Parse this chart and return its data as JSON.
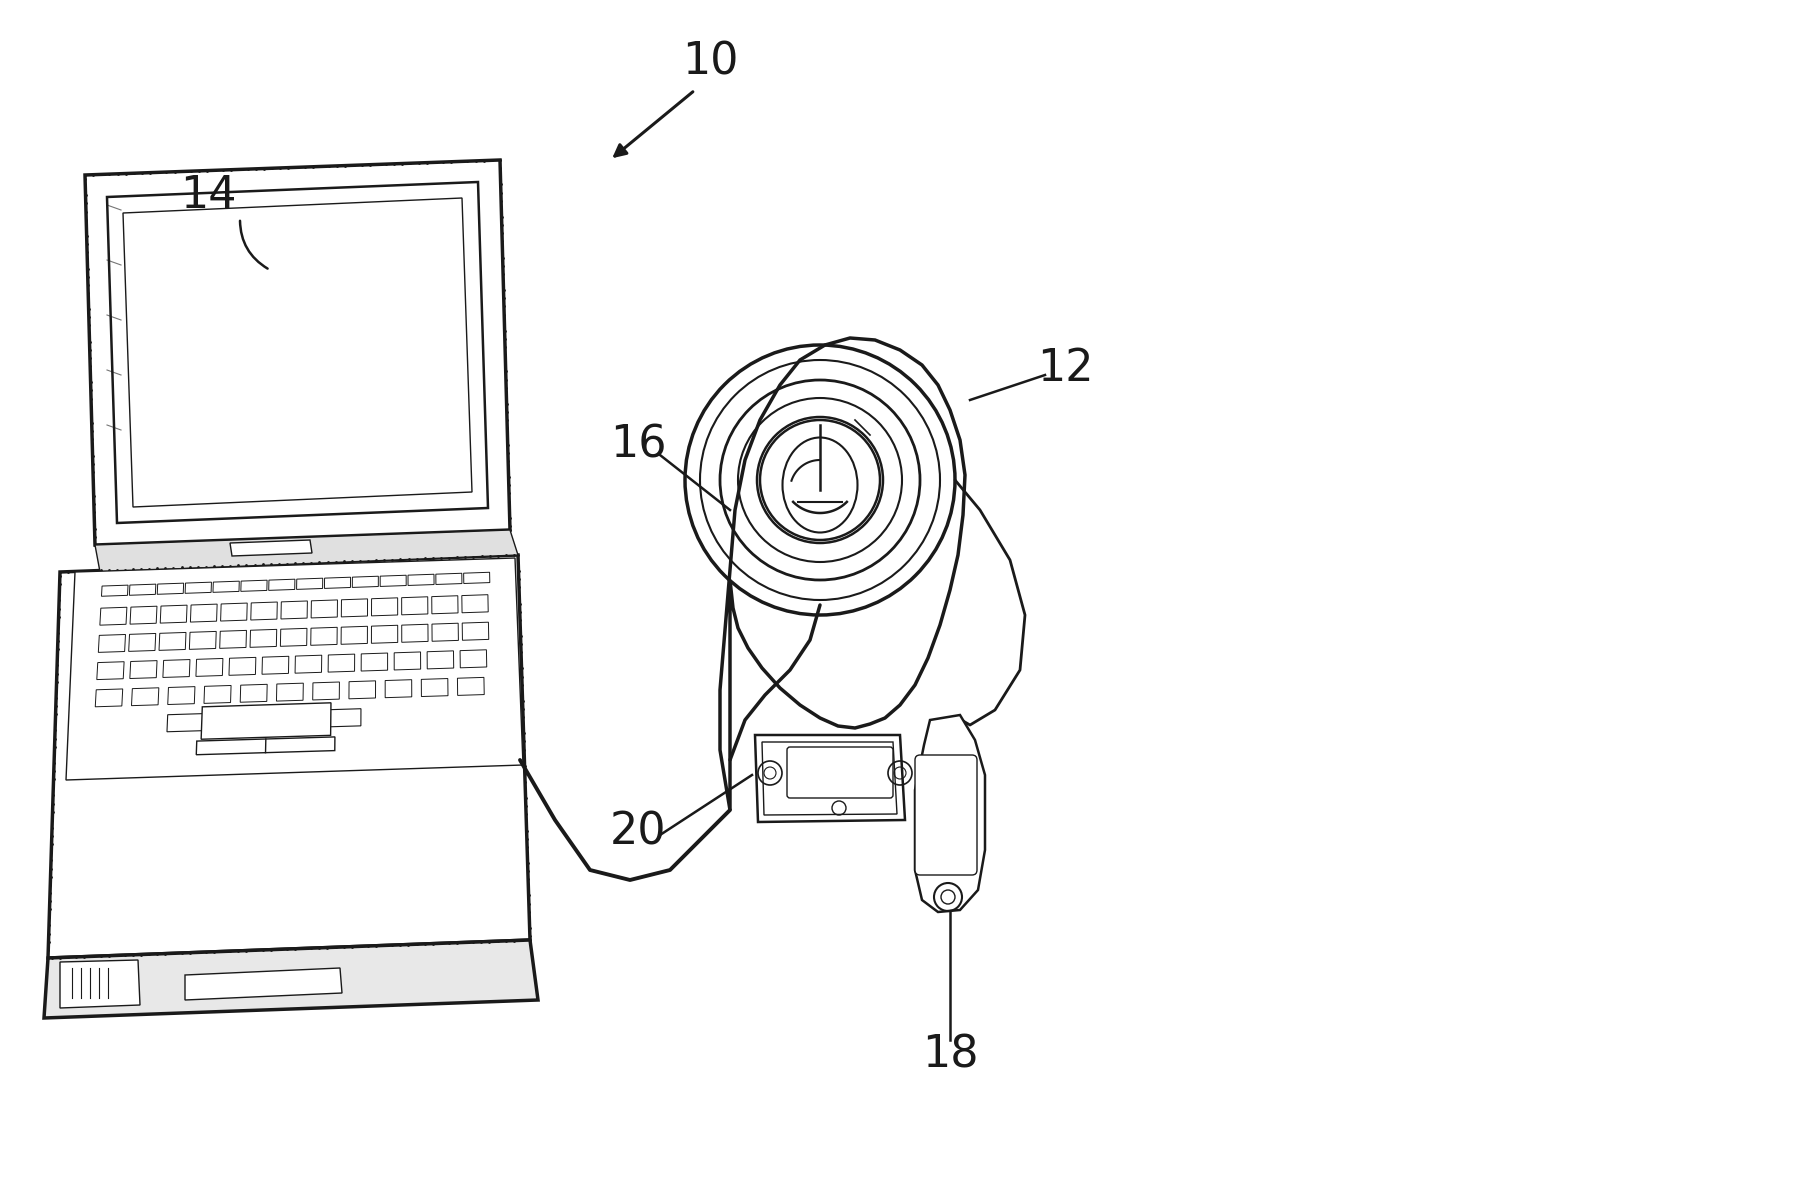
{
  "bg_color": "#ffffff",
  "line_color": "#1a1a1a",
  "lw_thick": 2.5,
  "lw_med": 1.8,
  "lw_thin": 1.0,
  "figsize": [
    18.06,
    11.93
  ],
  "dpi": 100
}
